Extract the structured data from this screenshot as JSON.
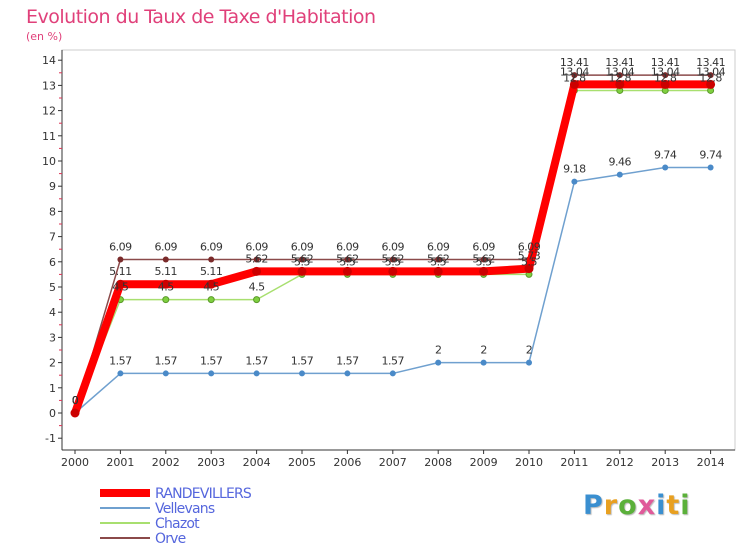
{
  "title": "Evolution du Taux de Taxe d'Habitation",
  "subtitle": "(en %)",
  "logo": {
    "text": "Proxiti",
    "letters": [
      "P",
      "r",
      "o",
      "x",
      "i",
      "t",
      "i"
    ]
  },
  "chart_data": {
    "type": "line",
    "title": "Evolution du Taux de Taxe d'Habitation",
    "ylabel": "(en %)",
    "xlabel": "",
    "ylim": [
      -1,
      14
    ],
    "yticks": [
      -1,
      0,
      1,
      2,
      3,
      4,
      5,
      6,
      7,
      8,
      9,
      10,
      11,
      12,
      13,
      14
    ],
    "categories": [
      "2000",
      "2001",
      "2002",
      "2003",
      "2004",
      "2005",
      "2006",
      "2007",
      "2008",
      "2009",
      "2010",
      "2011",
      "2012",
      "2013",
      "2014"
    ],
    "grid": false,
    "legend_position": "bottom-left",
    "series": [
      {
        "name": "RANDEVILLERS",
        "color": "#ff0000",
        "values": [
          0,
          5.11,
          5.11,
          5.11,
          5.62,
          5.62,
          5.62,
          5.62,
          5.62,
          5.62,
          5.73,
          13.04,
          13.04,
          13.04,
          13.04
        ],
        "labels": [
          "0",
          "5.11",
          "5.11",
          "5.11",
          "5.62",
          "5.62",
          "5.62",
          "5.62",
          "5.62",
          "5.62",
          "5.73",
          "13.04",
          "13.04",
          "13.04",
          "13.04"
        ]
      },
      {
        "name": "Vellevans",
        "color": "#6fa0cf",
        "values": [
          0,
          1.57,
          1.57,
          1.57,
          1.57,
          1.57,
          1.57,
          1.57,
          2,
          2,
          2,
          9.18,
          9.46,
          9.74,
          9.74
        ],
        "labels": [
          "0",
          "1.57",
          "1.57",
          "1.57",
          "1.57",
          "1.57",
          "1.57",
          "1.57",
          "2",
          "2",
          "2",
          "9.18",
          "9.46",
          "9.74",
          "9.74"
        ]
      },
      {
        "name": "Chazot",
        "color": "#a8df6f",
        "values": [
          0,
          4.5,
          4.5,
          4.5,
          4.5,
          5.5,
          5.5,
          5.5,
          5.5,
          5.5,
          5.5,
          12.8,
          12.8,
          12.8,
          12.8
        ],
        "labels": [
          "0",
          "4.5",
          "4.5",
          "4.5",
          "4.5",
          "5.5",
          "5.5",
          "5.5",
          "5.5",
          "5.5",
          "5.5",
          "12.8",
          "12.8",
          "12.8",
          "12.8"
        ]
      },
      {
        "name": "Orve",
        "color": "#8b4a4a",
        "values": [
          0,
          6.09,
          6.09,
          6.09,
          6.09,
          6.09,
          6.09,
          6.09,
          6.09,
          6.09,
          6.09,
          13.41,
          13.41,
          13.41,
          13.41
        ],
        "labels": [
          "0",
          "6.09",
          "6.09",
          "6.09",
          "6.09",
          "6.09",
          "6.09",
          "6.09",
          "6.09",
          "6.09",
          "6.09",
          "13.41",
          "13.41",
          "13.41",
          "13.41"
        ]
      }
    ]
  }
}
